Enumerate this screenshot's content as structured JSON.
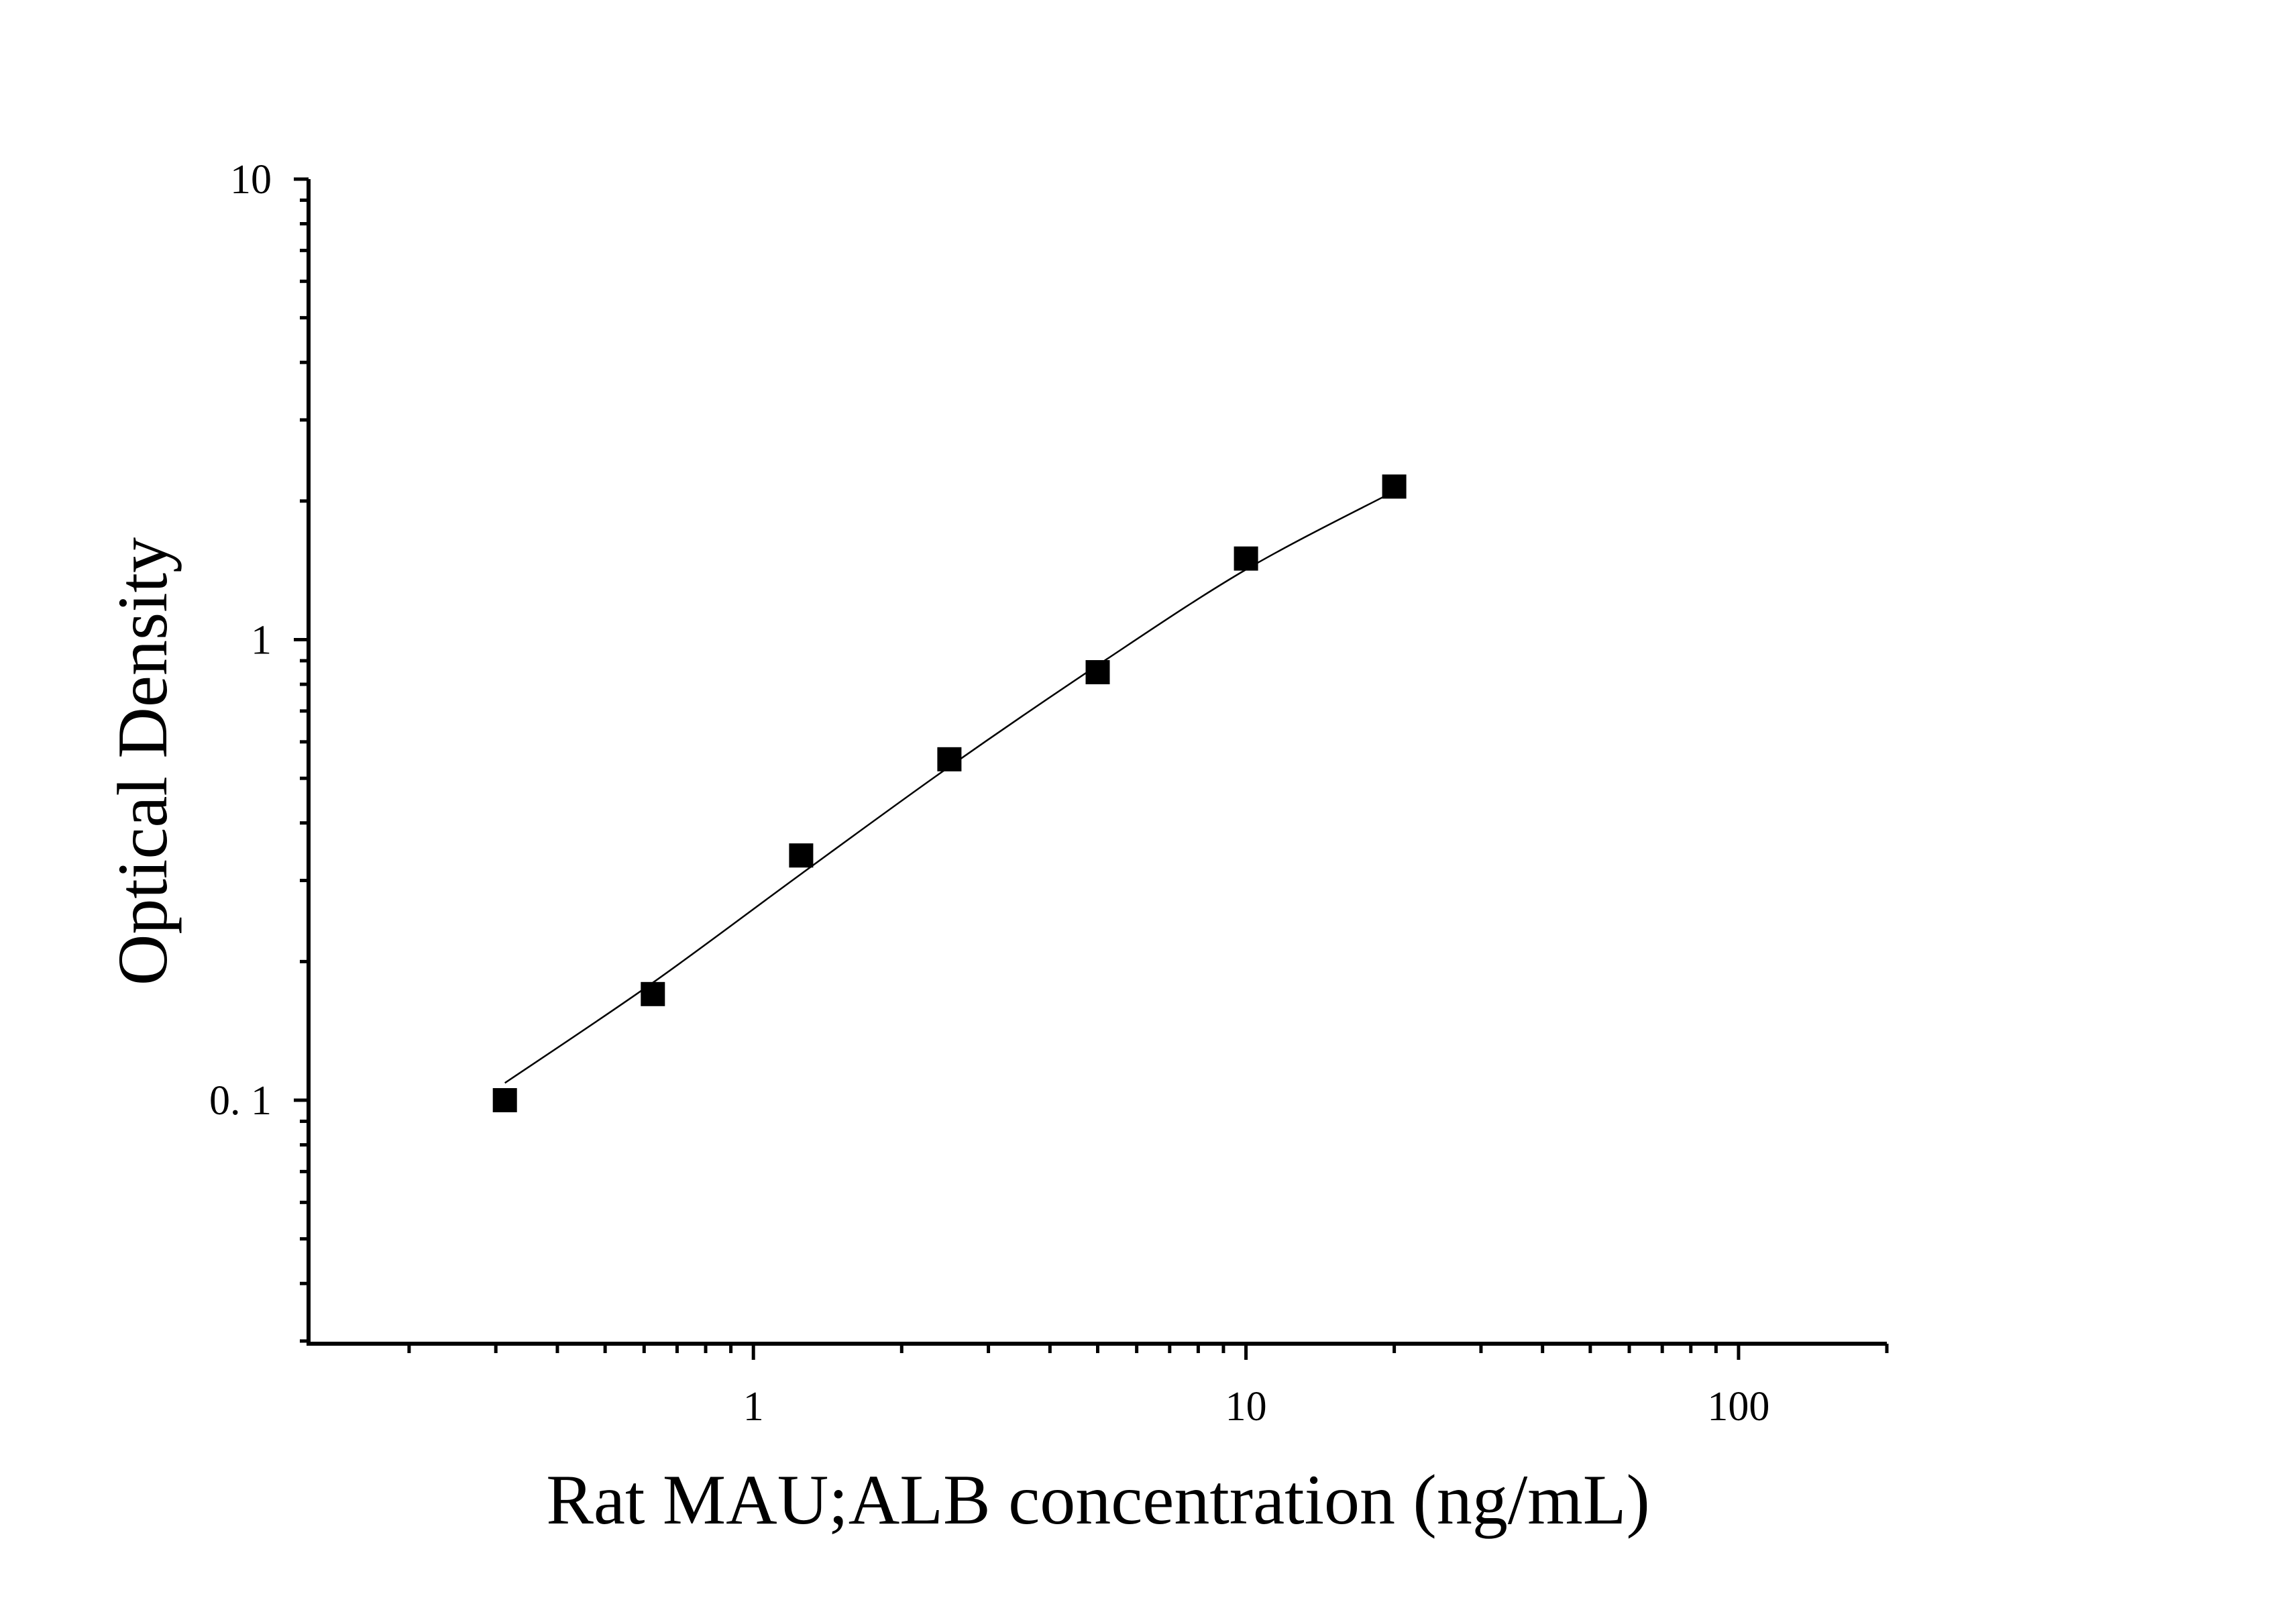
{
  "chart_data": {
    "type": "scatter",
    "title": "",
    "xlabel": "Rat MAU;ALB concentration (ng/mL)",
    "ylabel": "Optical Density",
    "x_scale": "log",
    "y_scale": "log",
    "xlim": [
      0.125,
      200
    ],
    "ylim": [
      0.0296,
      10
    ],
    "x_ticks": [
      {
        "value": 1,
        "label": "1"
      },
      {
        "value": 10,
        "label": "10"
      },
      {
        "value": 100,
        "label": "100"
      }
    ],
    "y_ticks": [
      {
        "value": 0.1,
        "label": "0. 1"
      },
      {
        "value": 1,
        "label": "1"
      },
      {
        "value": 10,
        "label": "10"
      }
    ],
    "grid": false,
    "legend": "none",
    "marker": "square",
    "series": [
      {
        "x": [
          0.313,
          0.625,
          1.25,
          2.5,
          5,
          10,
          20
        ],
        "y": [
          0.1,
          0.17,
          0.34,
          0.55,
          0.85,
          1.5,
          2.15
        ]
      }
    ],
    "fit_curve": {
      "x": [
        0.313,
        0.625,
        1.25,
        2.5,
        5,
        10,
        20
      ],
      "y": [
        0.109,
        0.18,
        0.31,
        0.53,
        0.88,
        1.42,
        2.1
      ]
    },
    "colors": {
      "marker": "#000000",
      "line": "#000000",
      "axis": "#000000"
    }
  }
}
